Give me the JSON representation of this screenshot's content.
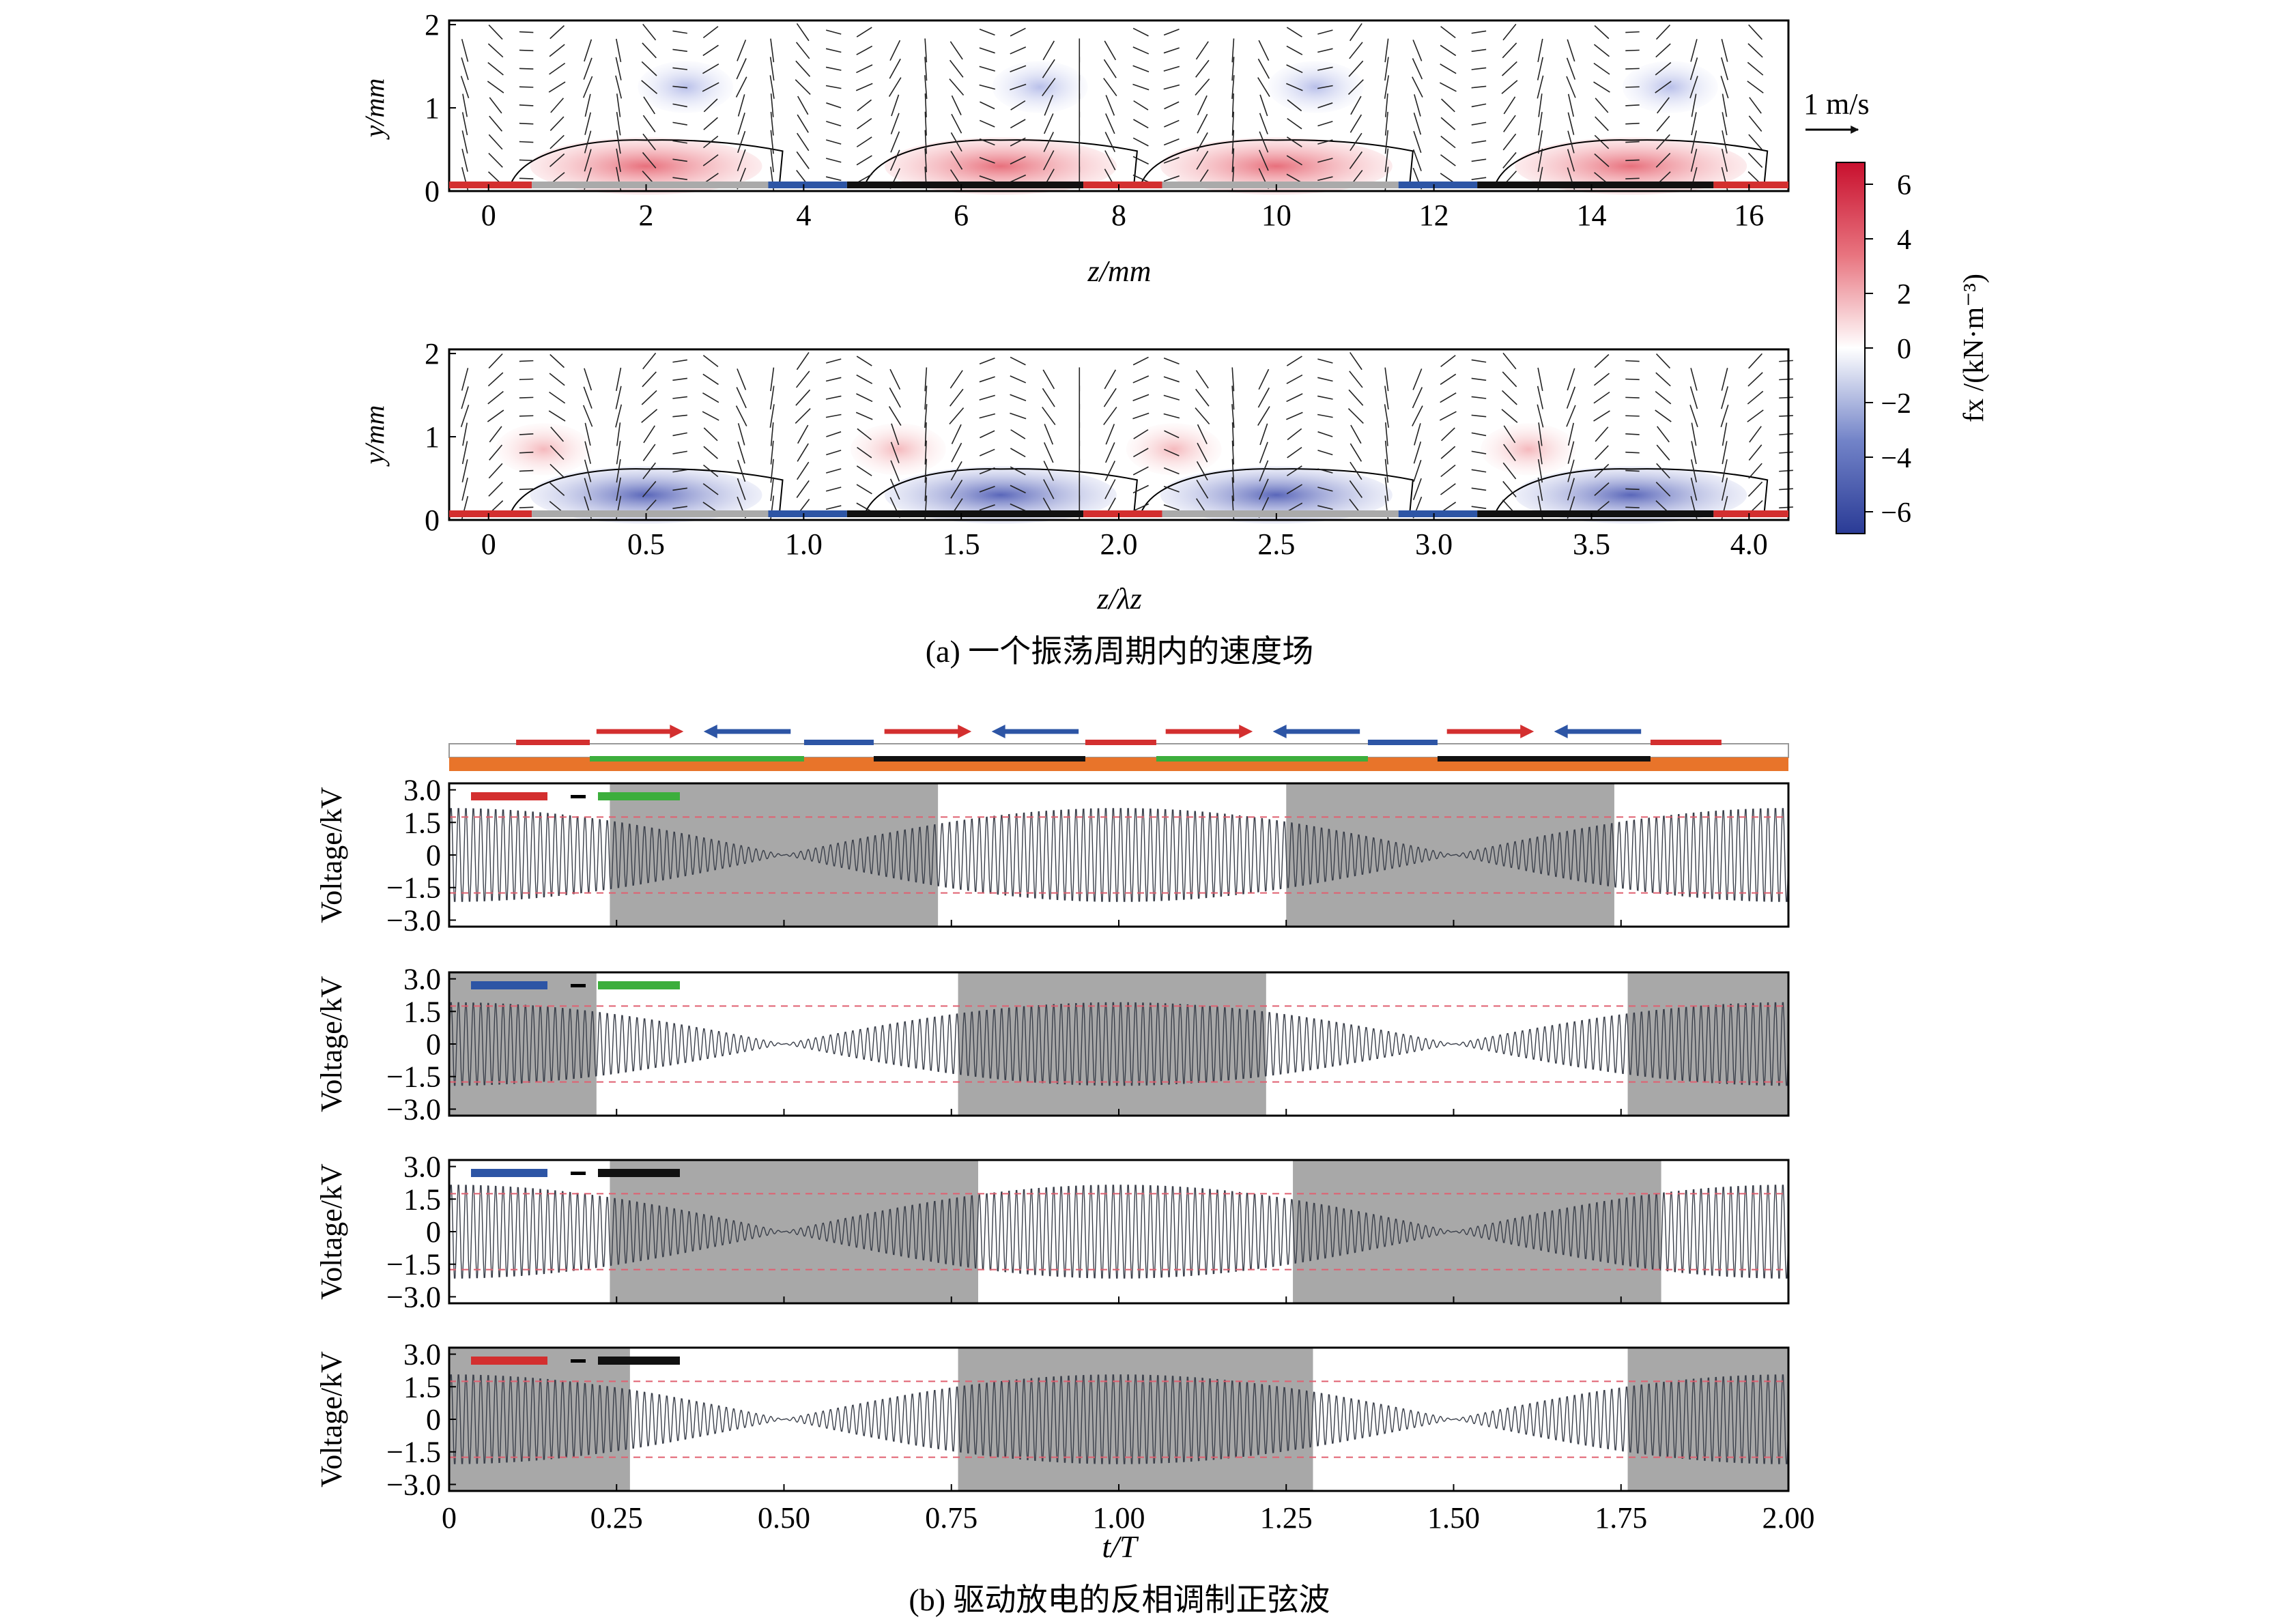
{
  "figure_a": {
    "caption": "(a) 一个振荡周期内的速度场",
    "panel1": {
      "ylabel": "y/mm",
      "xlabel": "z/mm",
      "xticks": [
        "0",
        "2",
        "4",
        "6",
        "8",
        "10",
        "12",
        "14",
        "16"
      ],
      "yticks": [
        "0",
        "1",
        "2"
      ]
    },
    "panel2": {
      "ylabel": "y/mm",
      "xlabel": "z/λz",
      "xticks": [
        "0",
        "0.5",
        "1.0",
        "1.5",
        "2.0",
        "2.5",
        "3.0",
        "3.5",
        "4.0"
      ],
      "yticks": [
        "0",
        "1",
        "2"
      ]
    },
    "scale_label": "1 m/s",
    "colorbar": {
      "label": "fx /(kN·m⁻³)",
      "ticks": [
        "6",
        "4",
        "2",
        "0",
        "−2",
        "−4",
        "−6"
      ],
      "min": -6.8,
      "max": 6.8
    }
  },
  "figure_b": {
    "caption": "(b) 驱动放电的反相调制正弦波",
    "xlabel": "t/T",
    "xticks": [
      "0",
      "0.25",
      "0.50",
      "0.75",
      "1.00",
      "1.25",
      "1.50",
      "1.75",
      "2.00"
    ],
    "ylabel": "Voltage/kV",
    "yticks": [
      "3.0",
      "1.5",
      "0",
      "−1.5",
      "−3.0"
    ],
    "threshold_kV": 1.75,
    "colors": {
      "red": "#d32f2f",
      "blue": "#2d55a5",
      "green": "#3cae3c",
      "black": "#111111",
      "orange": "#e8742a",
      "shade": "#a8a8a8"
    }
  },
  "chart_data": [
    {
      "type": "line",
      "name": "red-green",
      "pair": [
        "red",
        "green"
      ],
      "phase": 0.75,
      "amplitude_kV": 2.25,
      "shaded_intervals": [
        [
          0.24,
          0.73
        ],
        [
          1.25,
          1.74
        ]
      ],
      "xlim": [
        0,
        2
      ],
      "ylim": [
        -3.3,
        3.3
      ]
    },
    {
      "type": "line",
      "name": "blue-green",
      "pair": [
        "blue",
        "green"
      ],
      "phase": 0.25,
      "amplitude_kV": 2.0,
      "shaded_intervals": [
        [
          0,
          0.22
        ],
        [
          0.76,
          1.22
        ],
        [
          1.76,
          2.0
        ]
      ],
      "xlim": [
        0,
        2
      ],
      "ylim": [
        -3.3,
        3.3
      ]
    },
    {
      "type": "line",
      "name": "blue-black",
      "pair": [
        "blue",
        "black"
      ],
      "phase": 0.75,
      "amplitude_kV": 2.25,
      "shaded_intervals": [
        [
          0.24,
          0.79
        ],
        [
          1.26,
          1.81
        ]
      ],
      "xlim": [
        0,
        2
      ],
      "ylim": [
        -3.3,
        3.3
      ]
    },
    {
      "type": "line",
      "name": "red-black",
      "pair": [
        "red",
        "black"
      ],
      "phase": 0.25,
      "amplitude_kV": 2.15,
      "shaded_intervals": [
        [
          0,
          0.27
        ],
        [
          0.76,
          1.29
        ],
        [
          1.76,
          2.0
        ]
      ],
      "xlim": [
        0,
        2
      ],
      "ylim": [
        -3.3,
        3.3
      ]
    }
  ]
}
